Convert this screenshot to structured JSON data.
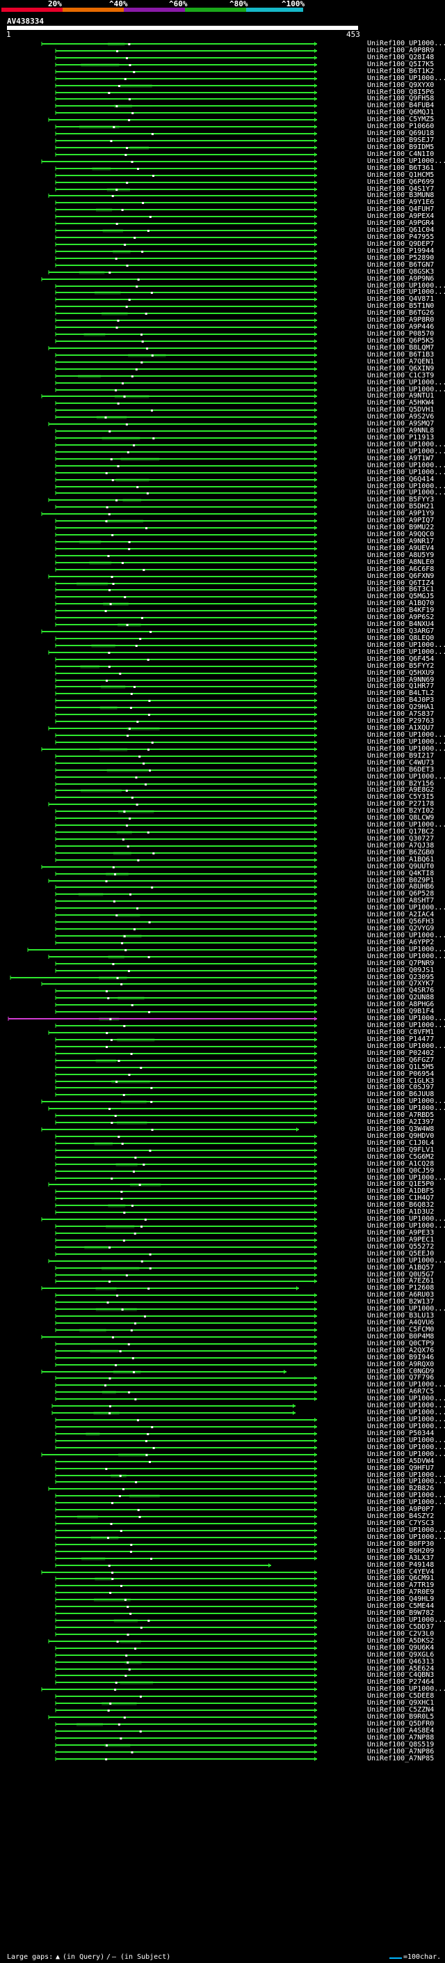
{
  "scale": {
    "labels": [
      "20%",
      "^40%",
      "^60%",
      "^80%",
      "^100%"
    ],
    "colors": [
      "#e8002a",
      "#e76a00",
      "#8a1aa8",
      "#1aa81a",
      "#16b8c8"
    ]
  },
  "query": {
    "id": "AV438334",
    "start": "1",
    "end": "453"
  },
  "hit_colors": {
    "normal": "#2ee82e",
    "outlier": "#d23cd2",
    "dot": "#ffffff",
    "dim": "#0a3a0a"
  },
  "hits": [
    "UniRef100_UP1000...",
    "UniRef100_A9P8R9",
    "UniRef100_Q28I48",
    "UniRef100_Q5I7K5",
    "UniRef100_B6T1K2",
    "UniRef100_UP1000...",
    "UniRef100_Q9XYX0",
    "UniRef100_Q8I5P6",
    "UniRef100_Q9FH58",
    "UniRef100_B4FUB4",
    "UniRef100_Q6MQJ1",
    "UniRef100_C5YMZ5",
    "UniRef100_P10660",
    "UniRef100_Q69U18",
    "UniRef100_B9SEJ7",
    "UniRef100_B9IDM5",
    "UniRef100_C4N1I0",
    "UniRef100_UP1000...",
    "UniRef100_B6T361",
    "UniRef100_Q1HCM5",
    "UniRef100_Q6P699",
    "UniRef100_Q4S1Y7",
    "UniRef100_B3MUN8",
    "UniRef100_A9Y1E6",
    "UniRef100_Q4FUH7",
    "UniRef100_A9PEX4",
    "UniRef100_A9PGR4",
    "UniRef100_Q61C04",
    "UniRef100_P47955",
    "UniRef100_Q9DEP7",
    "UniRef100_P19944",
    "UniRef100_P52890",
    "UniRef100_B6TGN7",
    "UniRef100_Q8GSK3",
    "UniRef100_A9P9N6",
    "UniRef100_UP1000...",
    "UniRef100_UP1000...",
    "UniRef100_Q4V871",
    "UniRef100_B5T1N0",
    "UniRef100_B6TG26",
    "UniRef100_A9P8R0",
    "UniRef100_A9P446",
    "UniRef100_P08570",
    "UniRef100_Q6P5K5",
    "UniRef100_B8LQM7",
    "UniRef100_B6T1B3",
    "UniRef100_A7QEN1",
    "UniRef100_Q6XIN9",
    "UniRef100_C1C3T9",
    "UniRef100_UP1000...",
    "UniRef100_UP1000...",
    "UniRef100_A9NTU1",
    "UniRef100_A5HKW4",
    "UniRef100_Q5DVH1",
    "UniRef100_A9S2V6",
    "UniRef100_A9SMQ7",
    "UniRef100_A9NNL8",
    "UniRef100_P11913",
    "UniRef100_UP1000...",
    "UniRef100_UP1000...",
    "UniRef100_A9T1W7",
    "UniRef100_UP1000...",
    "UniRef100_UP1000...",
    "UniRef100_Q6Q414",
    "UniRef100_UP1000...",
    "UniRef100_UP1000...",
    "UniRef100_B5FYY3",
    "UniRef100_B5DH21",
    "UniRef100_A9P1Y9",
    "UniRef100_A9PIQ7",
    "UniRef100_B9MU22",
    "UniRef100_A9QQC0",
    "UniRef100_A9NR17",
    "UniRef100_A9UEV4",
    "UniRef100_A8U5Y9",
    "UniRef100_A8NLE0",
    "UniRef100_A6C6F8",
    "UniRef100_Q6FXN9",
    "UniRef100_Q6TIZ4",
    "UniRef100_B6T3C1",
    "UniRef100_Q5MGJ5",
    "UniRef100_A1BQ70",
    "UniRef100_B4KF19",
    "UniRef100_A9P6S2",
    "UniRef100_B4NXU4",
    "UniRef100_Q3ARG7",
    "UniRef100_Q8LEQ0",
    "UniRef100_UP1000...",
    "UniRef100_UP1000...",
    "UniRef100_Q6F454",
    "UniRef100_B5FYY2",
    "UniRef100_Q5HXU9",
    "UniRef100_A9NN69",
    "UniRef100_Q1HR77",
    "UniRef100_B4LTL2",
    "UniRef100_B4J0P3",
    "UniRef100_Q29HA1",
    "UniRef100_A7S837",
    "UniRef100_P29763",
    "UniRef100_A1XQU7",
    "UniRef100_UP1000...",
    "UniRef100_UP1000...",
    "UniRef100_UP1000...",
    "UniRef100_B9I217",
    "UniRef100_C4WU73",
    "UniRef100_B6DET3",
    "UniRef100_UP1000...",
    "UniRef100_B2Y156",
    "UniRef100_A9E8G2",
    "UniRef100_C5Y3I5",
    "UniRef100_P27178",
    "UniRef100_B2YI02",
    "UniRef100_Q8LCW9",
    "UniRef100_UP1000...",
    "UniRef100_Q17BC2",
    "UniRef100_Q30727",
    "UniRef100_A7QJ38",
    "UniRef100_B6ZGB0",
    "UniRef100_A1BQ61",
    "UniRef100_Q9UUT0",
    "UniRef100_Q4KTI8",
    "UniRef100_B0Z9P1",
    "UniRef100_A8UHB6",
    "UniRef100_Q6P528",
    "UniRef100_A8SHT7",
    "UniRef100_UP1000...",
    "UniRef100_A2IAC4",
    "UniRef100_Q56FH3",
    "UniRef100_Q2VYG9",
    "UniRef100_UP1000...",
    "UniRef100_A6YPP2",
    "UniRef100_UP1000...",
    "UniRef100_UP1000...",
    "UniRef100_Q7PNR9",
    "UniRef100_Q09JS1",
    "UniRef100_Q23095",
    "UniRef100_Q7XYK7",
    "UniRef100_Q4SR76",
    "UniRef100_Q2UN88",
    "UniRef100_A8PHG6",
    "UniRef100_Q9B1F4",
    "UniRef100_UP1000...",
    "UniRef100_UP1000...",
    "UniRef100_C8VFM1",
    "UniRef100_P14477",
    "UniRef100_UP1000...",
    "UniRef100_P02402",
    "UniRef100_Q6FGZ7",
    "UniRef100_Q1L5M5",
    "UniRef100_P06954",
    "UniRef100_C1GLK3",
    "UniRef100_C0SJ97",
    "UniRef100_B6JUU8",
    "UniRef100_UP1000...",
    "UniRef100_UP1000...",
    "UniRef100_A7RBD5",
    "UniRef100_A2I397",
    "UniRef100_Q3W4W8",
    "UniRef100_Q9HDV0",
    "UniRef100_C1J0L4",
    "UniRef100_Q9FLV1",
    "UniRef100_C5G6M2",
    "UniRef100_A1CQ28",
    "UniRef100_Q0CJ59",
    "UniRef100_UP1000...",
    "UniRef100_Q1E5P0",
    "UniRef100_A1DBF5",
    "UniRef100_C1H4Q7",
    "UniRef100_B6Q832",
    "UniRef100_A1D3U2",
    "UniRef100_UP1000...",
    "UniRef100_UP1000...",
    "UniRef100_A9PE33",
    "UniRef100_A9PEC1",
    "UniRef100_Q55272",
    "UniRef100_Q5EEJ0",
    "UniRef100_UP1000...",
    "UniRef100_A1BQ57",
    "UniRef100_Q0U5G7",
    "UniRef100_A7EZ61",
    "UniRef100_P12608",
    "UniRef100_A6RU03",
    "UniRef100_B2W137",
    "UniRef100_UP1000...",
    "UniRef100_B3LU13",
    "UniRef100_A4QVU6",
    "UniRef100_C5FCM0",
    "UniRef100_B0P4M8",
    "UniRef100_Q0CTP9",
    "UniRef100_A2QX76",
    "UniRef100_B9I946",
    "UniRef100_A9RQX0",
    "UniRef100_C0NGD9",
    "UniRef100_Q7F796",
    "UniRef100_UP1000...",
    "UniRef100_A6R7C5",
    "UniRef100_UP1000...",
    "UniRef100_UP1000...",
    "UniRef100_UP1000...",
    "UniRef100_UP1000...",
    "UniRef100_UP1000...",
    "UniRef100_P50344",
    "UniRef100_UP1000...",
    "UniRef100_UP1000...",
    "UniRef100_UP1000...",
    "UniRef100_A5DVW4",
    "UniRef100_Q9HFU7",
    "UniRef100_UP1000...",
    "UniRef100_UP1000...",
    "UniRef100_B2B826",
    "UniRef100_UP1000...",
    "UniRef100_UP1000...",
    "UniRef100_A9P0P7",
    "UniRef100_B4SZY2",
    "UniRef100_C7YSC3",
    "UniRef100_UP1000...",
    "UniRef100_UP1000...",
    "UniRef100_B0FP30",
    "UniRef100_B6H209",
    "UniRef100_A3LX37",
    "UniRef100_P49148",
    "UniRef100_C4YEV4",
    "UniRef100_Q6CM91",
    "UniRef100_A7TR19",
    "UniRef100_A7R0E9",
    "UniRef100_Q49HL9",
    "UniRef100_C5ME44",
    "UniRef100_B9W782",
    "UniRef100_UP1000...",
    "UniRef100_C5DD37",
    "UniRef100_C2V3L0",
    "UniRef100_A5DKS2",
    "UniRef100_Q9U6K4",
    "UniRef100_Q9XGL6",
    "UniRef100_Q46313",
    "UniRef100_A5E624",
    "UniRef100_C4QBN3",
    "UniRef100_P27464",
    "UniRef100_UP1000...",
    "UniRef100_C5DEE8",
    "UniRef100_Q9XHC1",
    "UniRef100_C5ZZN4",
    "UniRef100_B9R0L5",
    "UniRef100_Q5DFR0",
    "UniRef100_A4S8E4",
    "UniRef100_A7NP88",
    "UniRef100_Q8S519",
    "UniRef100_A7NP86",
    "UniRef100_A7NP85"
  ],
  "footer": {
    "gaps_prefix": "Large gaps:",
    "gaps_query": "(in Query)",
    "gaps_separator": "/",
    "gaps_subject": "(in Subject)",
    "scale_text": "=100char."
  }
}
